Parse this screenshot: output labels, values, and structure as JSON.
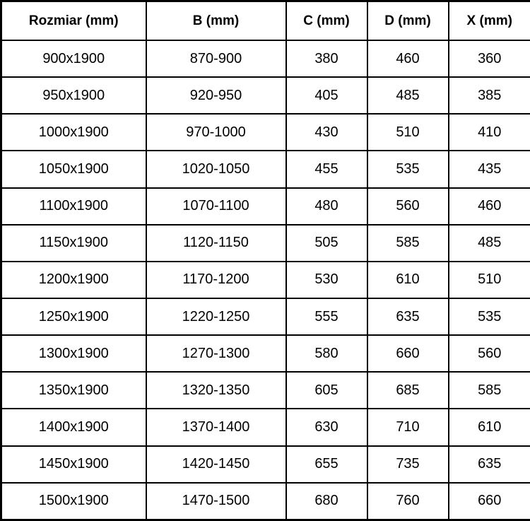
{
  "table": {
    "name": "shower-door-size-specifications",
    "columns": [
      "Rozmiar (mm)",
      "B (mm)",
      "C (mm)",
      "D (mm)",
      "X (mm)"
    ],
    "rows": [
      [
        "900x1900",
        "870-900",
        "380",
        "460",
        "360"
      ],
      [
        "950x1900",
        "920-950",
        "405",
        "485",
        "385"
      ],
      [
        "1000x1900",
        "970-1000",
        "430",
        "510",
        "410"
      ],
      [
        "1050x1900",
        "1020-1050",
        "455",
        "535",
        "435"
      ],
      [
        "1100x1900",
        "1070-1100",
        "480",
        "560",
        "460"
      ],
      [
        "1150x1900",
        "1120-1150",
        "505",
        "585",
        "485"
      ],
      [
        "1200x1900",
        "1170-1200",
        "530",
        "610",
        "510"
      ],
      [
        "1250x1900",
        "1220-1250",
        "555",
        "635",
        "535"
      ],
      [
        "1300x1900",
        "1270-1300",
        "580",
        "660",
        "560"
      ],
      [
        "1350x1900",
        "1320-1350",
        "605",
        "685",
        "585"
      ],
      [
        "1400x1900",
        "1370-1400",
        "630",
        "710",
        "610"
      ],
      [
        "1450x1900",
        "1420-1450",
        "655",
        "735",
        "635"
      ],
      [
        "1500x1900",
        "1470-1500",
        "680",
        "760",
        "660"
      ]
    ],
    "colors": {
      "border": "#000000",
      "background": "#ffffff",
      "text": "#000000"
    }
  }
}
